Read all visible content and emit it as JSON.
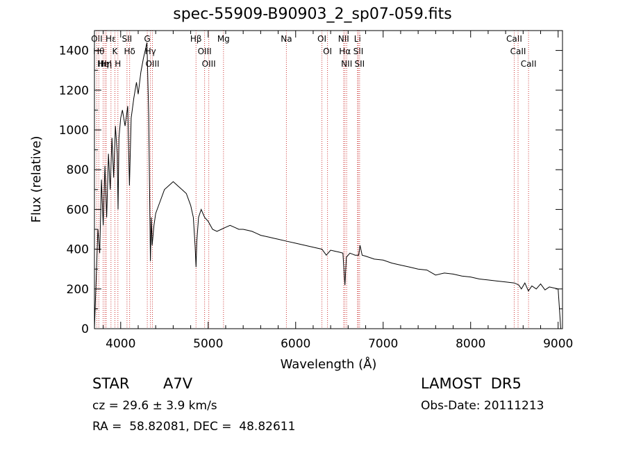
{
  "header": {
    "title": "spec-55909-B90903_2_sp07-059.fits"
  },
  "info": {
    "object_class": "STAR",
    "subclass": "A7V",
    "survey": "LAMOST  DR5",
    "cz": "cz = 29.6 ± 3.9 km/s",
    "obs_date": "Obs-Date: 20111213",
    "radec": "RA =  58.82081, DEC =  48.82611"
  },
  "colors": {
    "spectrum": "#000000",
    "line_markers": "#cc3333",
    "axes": "#000000"
  },
  "chart_data": {
    "type": "line",
    "xlabel": "Wavelength (Å)",
    "ylabel": "Flux (relative)",
    "xlim": [
      3700,
      9050
    ],
    "ylim": [
      0,
      1500
    ],
    "xticks": [
      4000,
      5000,
      6000,
      7000,
      8000,
      9000
    ],
    "yticks": [
      0,
      200,
      400,
      600,
      800,
      1000,
      1200,
      1400
    ],
    "series": [
      {
        "values_x": [
          3700,
          3720,
          3740,
          3760,
          3780,
          3800,
          3820,
          3840,
          3860,
          3880,
          3900,
          3920,
          3940,
          3960,
          3970,
          3980,
          4000,
          4020,
          4050,
          4080,
          4100,
          4120,
          4150,
          4180,
          4200,
          4230,
          4260,
          4280,
          4300,
          4320,
          4340,
          4350,
          4360,
          4380,
          4400,
          4450,
          4500,
          4550,
          4600,
          4650,
          4700,
          4750,
          4800,
          4830,
          4850,
          4861,
          4870,
          4890,
          4920,
          4960,
          5000,
          5050,
          5100,
          5150,
          5200,
          5250,
          5300,
          5350,
          5400,
          5450,
          5500,
          5550,
          5600,
          5650,
          5700,
          5750,
          5800,
          5900,
          6000,
          6100,
          6200,
          6300,
          6350,
          6400,
          6450,
          6500,
          6540,
          6563,
          6580,
          6620,
          6680,
          6720,
          6735,
          6760,
          6800,
          6900,
          7000,
          7100,
          7200,
          7300,
          7400,
          7500,
          7600,
          7700,
          7800,
          7900,
          8000,
          8100,
          8200,
          8300,
          8400,
          8500,
          8550,
          8580,
          8620,
          8660,
          8700,
          8750,
          8800,
          8850,
          8900,
          8950,
          9000,
          9030
        ],
        "values_y": [
          0,
          250,
          500,
          380,
          750,
          520,
          820,
          560,
          880,
          700,
          960,
          760,
          1020,
          880,
          600,
          960,
          1060,
          1100,
          1020,
          1120,
          720,
          1060,
          1160,
          1240,
          1180,
          1290,
          1360,
          1400,
          1440,
          1080,
          340,
          560,
          420,
          520,
          580,
          640,
          700,
          720,
          740,
          720,
          700,
          680,
          620,
          560,
          420,
          310,
          440,
          560,
          600,
          560,
          540,
          500,
          490,
          500,
          510,
          520,
          510,
          500,
          500,
          495,
          490,
          480,
          470,
          465,
          460,
          455,
          450,
          440,
          430,
          420,
          410,
          400,
          370,
          395,
          390,
          385,
          380,
          220,
          360,
          380,
          370,
          370,
          420,
          370,
          365,
          350,
          345,
          330,
          320,
          310,
          300,
          295,
          270,
          280,
          275,
          265,
          260,
          250,
          245,
          240,
          235,
          230,
          220,
          200,
          230,
          190,
          215,
          200,
          225,
          195,
          210,
          205,
          200,
          0
        ]
      }
    ],
    "line_markers": [
      {
        "wavelength": 3750,
        "label": "Hθ"
      },
      {
        "wavelength": 3799,
        "label": "Hη"
      },
      {
        "wavelength": 3727,
        "label": "OII"
      },
      {
        "wavelength": 3820,
        "label": "HeI"
      },
      {
        "wavelength": 3835,
        "label": "Hη"
      },
      {
        "wavelength": 3889,
        "label": "Hε"
      },
      {
        "wavelength": 3934,
        "label": "K"
      },
      {
        "wavelength": 3968,
        "label": "H"
      },
      {
        "wavelength": 4072,
        "label": "SII"
      },
      {
        "wavelength": 4102,
        "label": "Hδ"
      },
      {
        "wavelength": 4304,
        "label": "G"
      },
      {
        "wavelength": 4340,
        "label": "Hγ"
      },
      {
        "wavelength": 4363,
        "label": "OIII"
      },
      {
        "wavelength": 4861,
        "label": "Hβ"
      },
      {
        "wavelength": 4959,
        "label": "OIII"
      },
      {
        "wavelength": 5007,
        "label": "OIII"
      },
      {
        "wavelength": 5175,
        "label": "Mg"
      },
      {
        "wavelength": 5894,
        "label": "Na"
      },
      {
        "wavelength": 6300,
        "label": "OI"
      },
      {
        "wavelength": 6364,
        "label": "OI"
      },
      {
        "wavelength": 6548,
        "label": "NII"
      },
      {
        "wavelength": 6563,
        "label": "Hα"
      },
      {
        "wavelength": 6583,
        "label": "NII"
      },
      {
        "wavelength": 6707,
        "label": "Li"
      },
      {
        "wavelength": 6716,
        "label": "SII"
      },
      {
        "wavelength": 6731,
        "label": "SII"
      },
      {
        "wavelength": 8498,
        "label": "CaII"
      },
      {
        "wavelength": 8542,
        "label": "CaII"
      },
      {
        "wavelength": 8662,
        "label": "CaII"
      }
    ]
  }
}
